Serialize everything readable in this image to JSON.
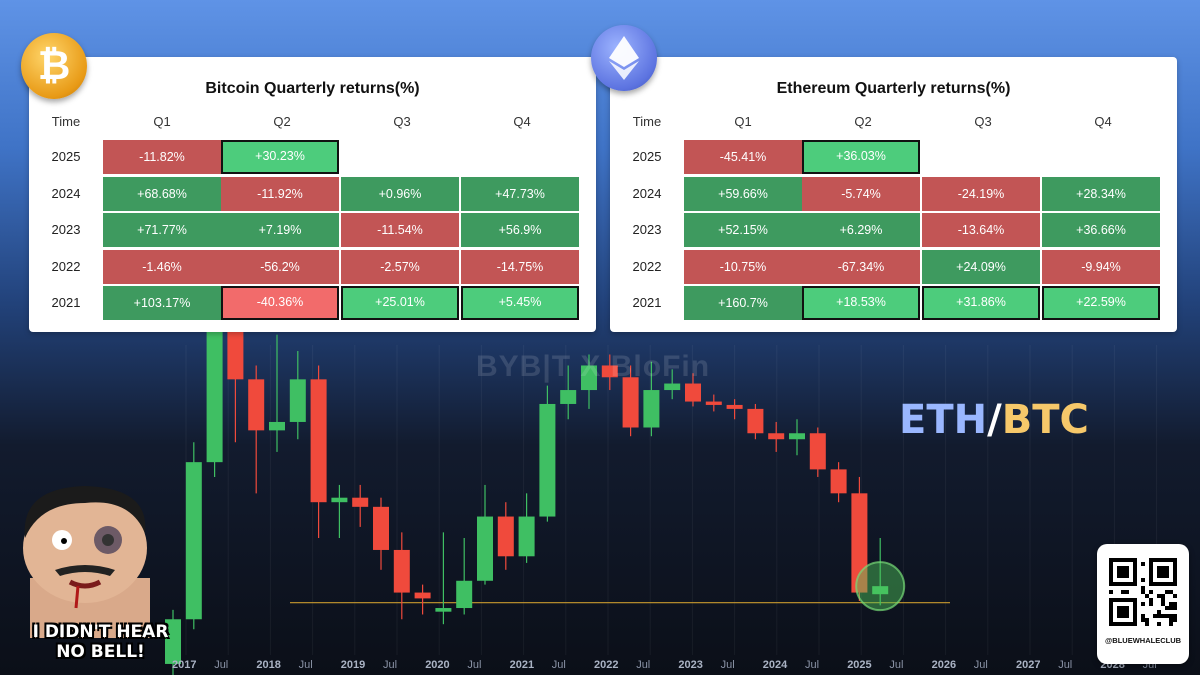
{
  "tables": {
    "btc": {
      "title": "Bitcoin Quarterly returns(%)",
      "headers": [
        "Time",
        "Q1",
        "Q2",
        "Q3",
        "Q4"
      ],
      "rows": [
        {
          "year": "2025",
          "cells": [
            "-11.82%",
            "+30.23%",
            "",
            ""
          ]
        },
        {
          "year": "2024",
          "cells": [
            "+68.68%",
            "-11.92%",
            "+0.96%",
            "+47.73%"
          ]
        },
        {
          "year": "2023",
          "cells": [
            "+71.77%",
            "+7.19%",
            "-11.54%",
            "+56.9%"
          ]
        },
        {
          "year": "2022",
          "cells": [
            "-1.46%",
            "-56.2%",
            "-2.57%",
            "-14.75%"
          ]
        },
        {
          "year": "2021",
          "cells": [
            "+103.17%",
            "-40.36%",
            "+25.01%",
            "+5.45%"
          ]
        }
      ],
      "highlighted": [
        [
          0,
          1
        ],
        [
          4,
          1
        ],
        [
          4,
          2
        ],
        [
          4,
          3
        ]
      ]
    },
    "eth": {
      "title": "Ethereum Quarterly returns(%)",
      "headers": [
        "Time",
        "Q1",
        "Q2",
        "Q3",
        "Q4"
      ],
      "rows": [
        {
          "year": "2025",
          "cells": [
            "-45.41%",
            "+36.03%",
            "",
            ""
          ]
        },
        {
          "year": "2024",
          "cells": [
            "+59.66%",
            "-5.74%",
            "-24.19%",
            "+28.34%"
          ]
        },
        {
          "year": "2023",
          "cells": [
            "+52.15%",
            "+6.29%",
            "-13.64%",
            "+36.66%"
          ]
        },
        {
          "year": "2022",
          "cells": [
            "-10.75%",
            "-67.34%",
            "+24.09%",
            "-9.94%"
          ]
        },
        {
          "year": "2021",
          "cells": [
            "+160.7%",
            "+18.53%",
            "+31.86%",
            "+22.59%"
          ]
        }
      ],
      "highlighted": [
        [
          0,
          1
        ],
        [
          4,
          1
        ],
        [
          4,
          2
        ],
        [
          4,
          3
        ]
      ]
    }
  },
  "colors": {
    "positive": "#3e9a5f",
    "negative": "#c25555",
    "positive_bright": "#4dcc7c",
    "negative_bright": "#f26b6b",
    "candle_up": "#3fbf63",
    "candle_down": "#f04a3c",
    "support_line": "#c79a2e"
  },
  "watermark": "BYB|T X BloFin",
  "pair_label": {
    "base": "ETH",
    "sep": "/",
    "quote": "BTC"
  },
  "meme_caption": [
    "I DIDN'T HEAR",
    "NO BELL!"
  ],
  "qr_handle": "@BLUEWHALECLUB",
  "chart_data": {
    "type": "candlestick",
    "title": "ETH/BTC",
    "period": "quarterly",
    "x_ticks": [
      "2017",
      "Jul",
      "2018",
      "Jul",
      "2019",
      "Jul",
      "2020",
      "Jul",
      "2021",
      "Jul",
      "2022",
      "Jul",
      "2023",
      "Jul",
      "2024",
      "Jul",
      "2025",
      "Jul",
      "2026",
      "Jul",
      "2027",
      "Jul",
      "2028",
      "Jul"
    ],
    "candles": [
      {
        "q": "2016 Q4",
        "dir": "up",
        "o": 0.012,
        "c": 0.016,
        "h": 0.017,
        "l": 0.01
      },
      {
        "q": "2017 Q1",
        "dir": "up",
        "o": 0.016,
        "c": 0.044,
        "h": 0.05,
        "l": 0.015
      },
      {
        "q": "2017 Q2",
        "dir": "up",
        "o": 0.044,
        "c": 0.115,
        "h": 0.155,
        "l": 0.04
      },
      {
        "q": "2017 Q3",
        "dir": "down",
        "o": 0.115,
        "c": 0.075,
        "h": 0.122,
        "l": 0.05
      },
      {
        "q": "2017 Q4",
        "dir": "down",
        "o": 0.075,
        "c": 0.054,
        "h": 0.082,
        "l": 0.036
      },
      {
        "q": "2018 Q1",
        "dir": "up",
        "o": 0.054,
        "c": 0.057,
        "h": 0.1,
        "l": 0.047
      },
      {
        "q": "2018 Q2",
        "dir": "up",
        "o": 0.057,
        "c": 0.075,
        "h": 0.09,
        "l": 0.051
      },
      {
        "q": "2018 Q3",
        "dir": "down",
        "o": 0.075,
        "c": 0.034,
        "h": 0.082,
        "l": 0.027
      },
      {
        "q": "2018 Q4",
        "dir": "up",
        "o": 0.034,
        "c": 0.035,
        "h": 0.038,
        "l": 0.027
      },
      {
        "q": "2019 Q1",
        "dir": "down",
        "o": 0.035,
        "c": 0.033,
        "h": 0.038,
        "l": 0.029
      },
      {
        "q": "2019 Q2",
        "dir": "down",
        "o": 0.033,
        "c": 0.025,
        "h": 0.035,
        "l": 0.022
      },
      {
        "q": "2019 Q3",
        "dir": "down",
        "o": 0.025,
        "c": 0.019,
        "h": 0.028,
        "l": 0.016
      },
      {
        "q": "2019 Q4",
        "dir": "down",
        "o": 0.019,
        "c": 0.0183,
        "h": 0.02,
        "l": 0.0165
      },
      {
        "q": "2020 Q1",
        "dir": "up",
        "o": 0.0168,
        "c": 0.0172,
        "h": 0.028,
        "l": 0.0155
      },
      {
        "q": "2020 Q2",
        "dir": "up",
        "o": 0.0172,
        "c": 0.0205,
        "h": 0.027,
        "l": 0.0165
      },
      {
        "q": "2020 Q3",
        "dir": "up",
        "o": 0.0205,
        "c": 0.031,
        "h": 0.038,
        "l": 0.02
      },
      {
        "q": "2020 Q4",
        "dir": "down",
        "o": 0.031,
        "c": 0.024,
        "h": 0.034,
        "l": 0.022
      },
      {
        "q": "2021 Q1",
        "dir": "up",
        "o": 0.024,
        "c": 0.031,
        "h": 0.036,
        "l": 0.023
      },
      {
        "q": "2021 Q2",
        "dir": "up",
        "o": 0.031,
        "c": 0.064,
        "h": 0.072,
        "l": 0.03
      },
      {
        "q": "2021 Q3",
        "dir": "up",
        "o": 0.064,
        "c": 0.07,
        "h": 0.082,
        "l": 0.058
      },
      {
        "q": "2021 Q4",
        "dir": "up",
        "o": 0.07,
        "c": 0.082,
        "h": 0.088,
        "l": 0.062
      },
      {
        "q": "2022 Q1",
        "dir": "down",
        "o": 0.082,
        "c": 0.076,
        "h": 0.088,
        "l": 0.07
      },
      {
        "q": "2022 Q2",
        "dir": "down",
        "o": 0.076,
        "c": 0.055,
        "h": 0.082,
        "l": 0.052
      },
      {
        "q": "2022 Q3",
        "dir": "up",
        "o": 0.055,
        "c": 0.07,
        "h": 0.084,
        "l": 0.052
      },
      {
        "q": "2022 Q4",
        "dir": "up",
        "o": 0.07,
        "c": 0.073,
        "h": 0.08,
        "l": 0.066
      },
      {
        "q": "2023 Q1",
        "dir": "down",
        "o": 0.073,
        "c": 0.065,
        "h": 0.078,
        "l": 0.063
      },
      {
        "q": "2023 Q2",
        "dir": "down",
        "o": 0.065,
        "c": 0.0636,
        "h": 0.068,
        "l": 0.061
      },
      {
        "q": "2023 Q3",
        "dir": "down",
        "o": 0.0636,
        "c": 0.062,
        "h": 0.066,
        "l": 0.058
      },
      {
        "q": "2023 Q4",
        "dir": "down",
        "o": 0.062,
        "c": 0.053,
        "h": 0.064,
        "l": 0.051
      },
      {
        "q": "2024 Q1",
        "dir": "down",
        "o": 0.053,
        "c": 0.051,
        "h": 0.057,
        "l": 0.047
      },
      {
        "q": "2024 Q2",
        "dir": "up",
        "o": 0.051,
        "c": 0.053,
        "h": 0.058,
        "l": 0.046
      },
      {
        "q": "2024 Q3",
        "dir": "down",
        "o": 0.053,
        "c": 0.042,
        "h": 0.055,
        "l": 0.04
      },
      {
        "q": "2024 Q4",
        "dir": "down",
        "o": 0.042,
        "c": 0.036,
        "h": 0.044,
        "l": 0.034
      },
      {
        "q": "2025 Q1",
        "dir": "down",
        "o": 0.036,
        "c": 0.019,
        "h": 0.04,
        "l": 0.018
      },
      {
        "q": "2025 Q2",
        "dir": "up",
        "o": 0.0188,
        "c": 0.0198,
        "h": 0.027,
        "l": 0.0175
      }
    ],
    "support_level": 0.0178
  }
}
